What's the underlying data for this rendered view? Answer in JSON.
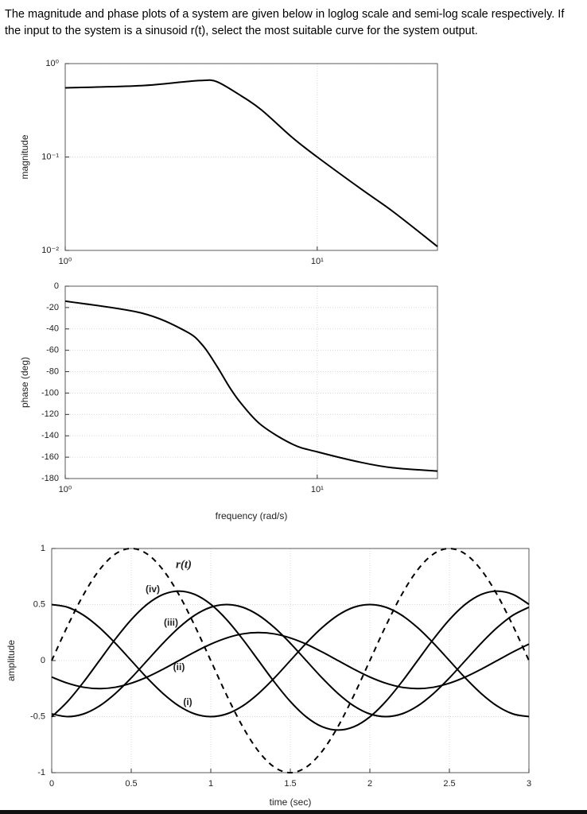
{
  "question": "The magnitude and phase plots of a system are given below in loglog scale and semi-log scale respectively. If the input to the system is a sinusoid r(t), select the most suitable curve for the system output.",
  "chart_data": [
    {
      "type": "line",
      "ylabel": "magnitude",
      "xscale": "log",
      "yscale": "log",
      "grid": true,
      "color": "#000000",
      "x": [
        1,
        2,
        3,
        3.5,
        4,
        5,
        6,
        8,
        10,
        15,
        20,
        30
      ],
      "values": [
        0.55,
        0.58,
        0.64,
        0.66,
        0.64,
        0.45,
        0.32,
        0.16,
        0.1,
        0.045,
        0.026,
        0.011
      ],
      "xlim": [
        1,
        30
      ],
      "ylim": [
        0.01,
        1
      ],
      "xticks": [
        {
          "value": 1,
          "label": "10⁰"
        },
        {
          "value": 10,
          "label": "10¹"
        }
      ],
      "yticks": [
        {
          "value": 0.01,
          "label": "10⁻²"
        },
        {
          "value": 0.1,
          "label": "10⁻¹"
        },
        {
          "value": 1,
          "label": "10⁰"
        }
      ]
    },
    {
      "type": "line",
      "ylabel": "phase (deg)",
      "xlabel": "frequency (rad/s)",
      "xscale": "log",
      "grid": true,
      "color": "#000000",
      "x": [
        1,
        2,
        3,
        3.5,
        4,
        4.5,
        5,
        6,
        8,
        10,
        15,
        20,
        30
      ],
      "values": [
        -14,
        -25,
        -42,
        -55,
        -75,
        -95,
        -110,
        -130,
        -148,
        -155,
        -165,
        -170,
        -173
      ],
      "xlim": [
        1,
        30
      ],
      "ylim": [
        -180,
        0
      ],
      "xticks": [
        {
          "value": 1,
          "label": "10⁰"
        },
        {
          "value": 10,
          "label": "10¹"
        }
      ],
      "yticks": [
        0,
        -20,
        -40,
        -60,
        -80,
        -100,
        -120,
        -140,
        -160,
        -180
      ]
    },
    {
      "type": "line",
      "ylabel": "amplitude",
      "xlabel": "time (sec)",
      "grid": true,
      "x": [
        0,
        0.1,
        0.2,
        0.3,
        0.4,
        0.5,
        0.6,
        0.7,
        0.8,
        0.9,
        1,
        1.1,
        1.2,
        1.3,
        1.4,
        1.5,
        1.6,
        1.7,
        1.8,
        1.9,
        2,
        2.1,
        2.2,
        2.3,
        2.4,
        2.5,
        2.6,
        2.7,
        2.8,
        2.9,
        3
      ],
      "xlim": [
        0,
        3
      ],
      "ylim": [
        -1,
        1
      ],
      "xticks": [
        0,
        0.5,
        1,
        1.5,
        2,
        2.5,
        3
      ],
      "yticks": [
        -1,
        -0.5,
        0,
        0.5,
        1
      ],
      "series": [
        {
          "name": "r(t)",
          "color": "#000000",
          "style": "dashed",
          "values": [
            0,
            0.309,
            0.588,
            0.809,
            0.951,
            1,
            0.951,
            0.809,
            0.588,
            0.309,
            0,
            -0.309,
            -0.588,
            -0.809,
            -0.951,
            -1,
            -0.951,
            -0.809,
            -0.588,
            -0.309,
            0,
            0.309,
            0.588,
            0.809,
            0.951,
            1,
            0.951,
            0.809,
            0.588,
            0.309,
            0
          ]
        },
        {
          "name": "(iv)",
          "color": "#000000",
          "style": "solid",
          "values": [
            -0.502,
            -0.365,
            -0.192,
            0,
            0.192,
            0.365,
            0.502,
            0.59,
            0.62,
            0.59,
            0.502,
            0.365,
            0.192,
            0,
            -0.192,
            -0.365,
            -0.502,
            -0.59,
            -0.62,
            -0.59,
            -0.502,
            -0.365,
            -0.192,
            0,
            0.192,
            0.365,
            0.502,
            0.59,
            0.62,
            0.59,
            0.502
          ]
        },
        {
          "name": "(iii)",
          "color": "#000000",
          "style": "solid",
          "values": [
            -0.476,
            -0.5,
            -0.476,
            -0.405,
            -0.294,
            -0.155,
            0,
            0.155,
            0.294,
            0.405,
            0.476,
            0.5,
            0.476,
            0.405,
            0.294,
            0.155,
            0,
            -0.155,
            -0.294,
            -0.405,
            -0.476,
            -0.5,
            -0.476,
            -0.405,
            -0.294,
            -0.155,
            0,
            0.155,
            0.294,
            0.405,
            0.476
          ]
        },
        {
          "name": "(ii)",
          "color": "#000000",
          "style": "solid",
          "values": [
            -0.147,
            -0.202,
            -0.238,
            -0.25,
            -0.238,
            -0.202,
            -0.147,
            -0.077,
            0,
            0.077,
            0.147,
            0.202,
            0.238,
            0.25,
            0.238,
            0.202,
            0.147,
            0.077,
            0,
            -0.077,
            -0.147,
            -0.202,
            -0.238,
            -0.25,
            -0.238,
            -0.202,
            -0.147,
            -0.077,
            0,
            0.077,
            0.147
          ]
        },
        {
          "name": "(i)",
          "color": "#000000",
          "style": "solid",
          "values": [
            0.5,
            0.476,
            0.405,
            0.294,
            0.155,
            0,
            -0.155,
            -0.294,
            -0.405,
            -0.476,
            -0.5,
            -0.476,
            -0.405,
            -0.294,
            -0.155,
            0,
            0.155,
            0.294,
            0.405,
            0.476,
            0.5,
            0.476,
            0.405,
            0.294,
            0.155,
            0,
            -0.155,
            -0.294,
            -0.405,
            -0.476,
            -0.5
          ]
        }
      ]
    }
  ]
}
